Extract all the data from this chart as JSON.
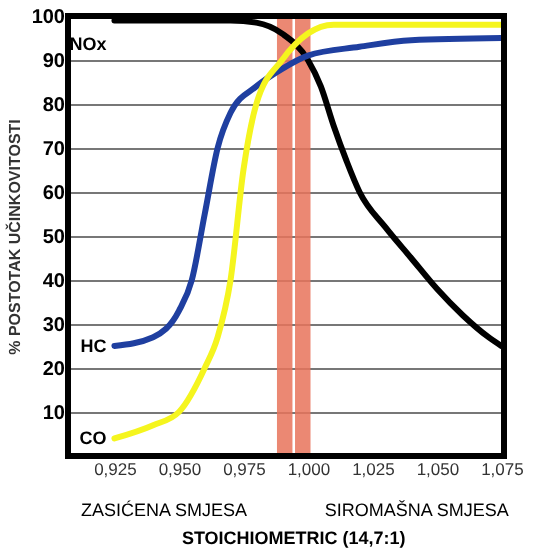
{
  "chart_data": {
    "type": "line",
    "ylabel": "% POSTOTAK UČINKOVITOSTI",
    "xlim": [
      0.907,
      1.076
    ],
    "ylim": [
      0,
      100
    ],
    "xticks": [
      {
        "value": 0.925,
        "label": "0,925"
      },
      {
        "value": 0.95,
        "label": "0,950"
      },
      {
        "value": 0.975,
        "label": "0,975"
      },
      {
        "value": 1.0,
        "label": "1,000"
      },
      {
        "value": 1.025,
        "label": "1,025"
      },
      {
        "value": 1.05,
        "label": "1,050"
      },
      {
        "value": 1.075,
        "label": "1,075"
      }
    ],
    "yticks": [
      10,
      20,
      30,
      40,
      50,
      60,
      70,
      80,
      90,
      100
    ],
    "grid": "y",
    "line_style": "solid",
    "marker": "none",
    "series": [
      {
        "name": "NOx",
        "color": "#000000",
        "x": [
          0.925,
          0.97,
          0.98,
          0.99,
          1.0,
          1.005,
          1.01,
          1.015,
          1.02,
          1.03,
          1.04,
          1.05,
          1.06,
          1.07,
          1.075
        ],
        "values": [
          99,
          99,
          98.5,
          96,
          90,
          84,
          75,
          67,
          60,
          52,
          45,
          38,
          32,
          27,
          25
        ]
      },
      {
        "name": "HC",
        "color": "#1f3fa0",
        "x": [
          0.925,
          0.94,
          0.95,
          0.955,
          0.96,
          0.965,
          0.97,
          0.98,
          0.99,
          1.0,
          1.02,
          1.04,
          1.075
        ],
        "values": [
          25,
          27,
          33,
          40,
          55,
          70,
          78,
          84,
          88,
          91,
          93,
          94.5,
          95
        ]
      },
      {
        "name": "CO",
        "color": "#f5f51e",
        "x": [
          0.925,
          0.94,
          0.95,
          0.96,
          0.965,
          0.97,
          0.975,
          0.98,
          0.99,
          1.0,
          1.01,
          1.075
        ],
        "values": [
          4,
          7,
          10,
          20,
          27,
          40,
          65,
          80,
          90,
          96,
          98,
          98
        ]
      }
    ],
    "bands": [
      {
        "axis": "x",
        "from": 0.988,
        "to": 0.994,
        "color": "#e8735a"
      },
      {
        "axis": "x",
        "from": 0.995,
        "to": 1.001,
        "color": "#e8735a"
      }
    ],
    "annotations": [
      "ZASIĆENA SMJESA",
      "SIROMAŠNA SMJESA",
      "STOICHIOMETRIC (14,7:1)"
    ]
  }
}
